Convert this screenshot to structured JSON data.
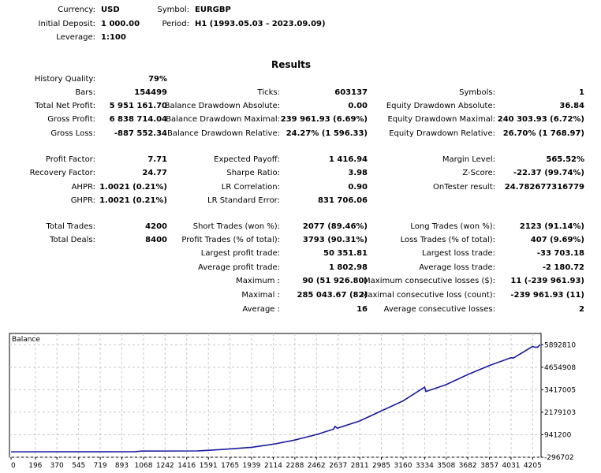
{
  "settings": {
    "currency_label": "Currency:",
    "currency": "USD",
    "deposit_label": "Initial Deposit:",
    "deposit": "1 000.00",
    "leverage_label": "Leverage:",
    "leverage": "1:100",
    "symbol_label": "Symbol:",
    "symbol": "EURGBP",
    "period_label": "Period:",
    "period": "H1 (1993.05.03 - 2023.09.09)"
  },
  "results_title": "Results",
  "rows": [
    [
      [
        "History Quality:",
        "79%"
      ],
      null,
      null
    ],
    [
      [
        "Bars:",
        "154499"
      ],
      [
        "Ticks:",
        "603137"
      ],
      [
        "Symbols:",
        "1"
      ]
    ],
    [
      [
        "Total Net Profit:",
        "5 951 161.70"
      ],
      [
        "Balance Drawdown Absolute:",
        "0.00"
      ],
      [
        "Equity Drawdown Absolute:",
        "36.84"
      ]
    ],
    [
      [
        "Gross Profit:",
        "6 838 714.04"
      ],
      [
        "Balance Drawdown Maximal:",
        "239 961.93 (6.69%)"
      ],
      [
        "Equity Drawdown Maximal:",
        "240 303.93 (6.72%)"
      ]
    ],
    [
      [
        "Gross Loss:",
        "-887 552.34"
      ],
      [
        "Balance Drawdown Relative:",
        "24.27% (1 596.33)"
      ],
      [
        "Equity Drawdown Relative:",
        "26.70% (1 768.97)"
      ]
    ],
    [
      [
        "Profit Factor:",
        "7.71"
      ],
      [
        "Expected Payoff:",
        "1 416.94"
      ],
      [
        "Margin Level:",
        "565.52%"
      ]
    ],
    [
      [
        "Recovery Factor:",
        "24.77"
      ],
      [
        "Sharpe Ratio:",
        "3.98"
      ],
      [
        "Z-Score:",
        "-22.37 (99.74%)"
      ]
    ],
    [
      [
        "AHPR:",
        "1.0021 (0.21%)"
      ],
      [
        "LR Correlation:",
        "0.90"
      ],
      [
        "OnTester result:",
        "24.782677316779"
      ]
    ],
    [
      [
        "GHPR:",
        "1.0021 (0.21%)"
      ],
      [
        "LR Standard Error:",
        "831 706.06"
      ],
      null
    ],
    [
      [
        "Total Trades:",
        "4200"
      ],
      [
        "Short Trades (won %):",
        "2077 (89.46%)"
      ],
      [
        "Long Trades (won %):",
        "2123 (91.14%)"
      ]
    ],
    [
      [
        "Total Deals:",
        "8400"
      ],
      [
        "Profit Trades (% of total):",
        "3793 (90.31%)"
      ],
      [
        "Loss Trades (% of total):",
        "407 (9.69%)"
      ]
    ],
    [
      null,
      [
        "Largest profit trade:",
        "50 351.81"
      ],
      [
        "Largest loss trade:",
        "-33 703.18"
      ]
    ],
    [
      null,
      [
        "Average profit trade:",
        "1 802.98"
      ],
      [
        "Average loss trade:",
        "-2 180.72"
      ]
    ],
    [
      null,
      [
        "Maximum :",
        "90 (51 926.80)"
      ],
      [
        "Maximum consecutive losses ($):",
        "11 (-239 961.93)"
      ]
    ],
    [
      null,
      [
        "Maximal :",
        "285 043.67 (82)"
      ],
      [
        "Maximal consecutive loss (count):",
        "-239 961.93 (11)"
      ]
    ],
    [
      null,
      [
        "Average :",
        "16"
      ],
      [
        "Average consecutive losses:",
        "2"
      ]
    ]
  ],
  "chart_data": {
    "type": "line",
    "title": "Balance",
    "x_ticks": [
      "0",
      "196",
      "370",
      "545",
      "719",
      "893",
      "1068",
      "1242",
      "1416",
      "1591",
      "1765",
      "1939",
      "2114",
      "2288",
      "2462",
      "2637",
      "2811",
      "2985",
      "3160",
      "3334",
      "3508",
      "3682",
      "3857",
      "4031",
      "4205"
    ],
    "y_ticks": [
      "5892810",
      "4654908",
      "3417005",
      "2179103",
      "941200",
      "-296702"
    ],
    "xlim": [
      0,
      4260
    ],
    "ylim": [
      -296702,
      6511761
    ],
    "grid": true,
    "line_color": "#1a1aa0",
    "series": [
      {
        "x": [
          0,
          1000,
          1050,
          1500,
          1700,
          1939,
          2114,
          2288,
          2462,
          2600,
          2612,
          2630,
          2811,
          2985,
          3160,
          3334,
          3345,
          3508,
          3682,
          3857,
          4031,
          4050,
          4205,
          4225,
          4245,
          4265
        ],
        "y": [
          1000,
          8000,
          40000,
          50000,
          130000,
          250000,
          420000,
          650000,
          950000,
          1250000,
          1400000,
          1300000,
          1700000,
          2250000,
          2800000,
          3560000,
          3320000,
          3700000,
          4250000,
          4750000,
          5180000,
          5160000,
          5800000,
          5750000,
          5760000,
          5900000
        ]
      }
    ]
  }
}
